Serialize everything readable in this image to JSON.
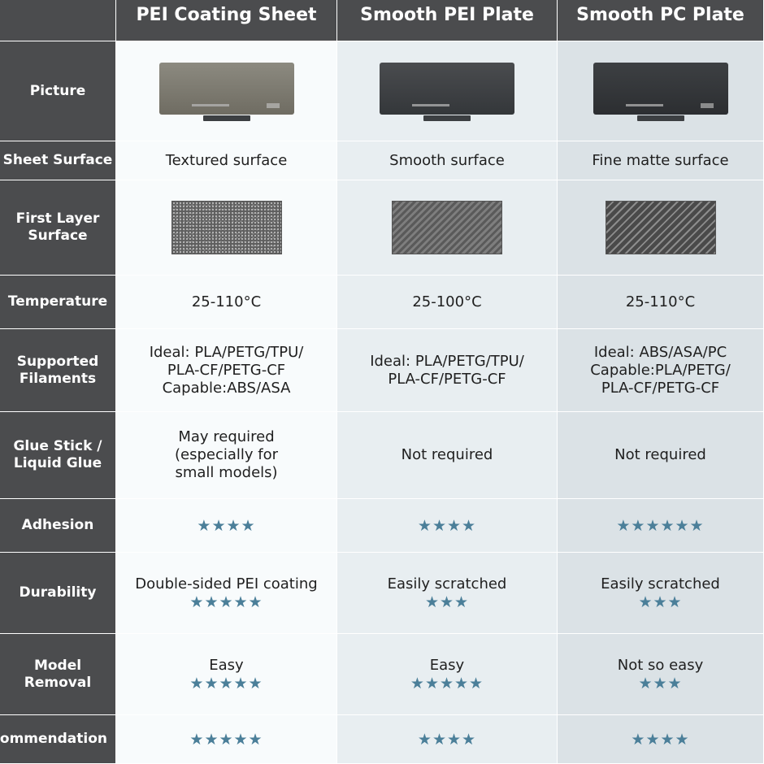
{
  "columns": [
    "PEI Coating Sheet",
    "Smooth PEI Plate",
    "Smooth PC Plate"
  ],
  "rows": {
    "picture": {
      "label": "Picture"
    },
    "sheet_surface": {
      "label": "Sheet Surface",
      "values": [
        "Textured surface",
        "Smooth surface",
        "Fine matte surface"
      ]
    },
    "first_layer": {
      "label1": "First Layer",
      "label2": "Surface"
    },
    "temperature": {
      "label": "Temperature",
      "values": [
        "25-110°C",
        "25-100°C",
        "25-110°C"
      ]
    },
    "filaments": {
      "label1": "Supported",
      "label2": "Filaments",
      "values": [
        [
          "Ideal: PLA/PETG/TPU/",
          "PLA-CF/PETG-CF",
          "Capable:ABS/ASA"
        ],
        [
          "Ideal: PLA/PETG/TPU/",
          "PLA-CF/PETG-CF"
        ],
        [
          "Ideal: ABS/ASA/PC",
          "Capable:PLA/PETG/",
          "PLA-CF/PETG-CF"
        ]
      ]
    },
    "glue": {
      "label1": "Glue Stick /",
      "label2": "Liquid Glue",
      "values": [
        [
          "May required",
          "(especially for",
          "small models)"
        ],
        [
          "Not required"
        ],
        [
          "Not required"
        ]
      ]
    },
    "adhesion": {
      "label": "Adhesion",
      "stars": [
        4,
        4,
        6
      ],
      "star_text": [
        "★★★★",
        "★★★★",
        "★★★★★★"
      ]
    },
    "durability": {
      "label": "Durability",
      "values": [
        "Double-sided PEI coating",
        "Easily scratched",
        "Easily scratched"
      ],
      "stars": [
        5,
        3,
        3
      ],
      "star_text": [
        "★★★★★",
        "★★★",
        "★★★"
      ]
    },
    "removal": {
      "label1": "Model",
      "label2": "Removal",
      "values": [
        "Easy",
        "Easy",
        "Not so easy"
      ],
      "stars": [
        5,
        5,
        3
      ],
      "star_text": [
        "★★★★★",
        "★★★★★",
        "★★★"
      ]
    },
    "recommendation": {
      "label": "Recommendation",
      "stars": [
        5,
        4,
        4
      ],
      "star_text": [
        "★★★★★",
        "★★★★",
        "★★★★"
      ]
    }
  },
  "colors": {
    "header_bg": "#4b4c4e",
    "col1_bg": "#f8fbfc",
    "col2_bg": "#e8eef1",
    "col3_bg": "#dbe2e6",
    "star": "#4b7f99"
  }
}
